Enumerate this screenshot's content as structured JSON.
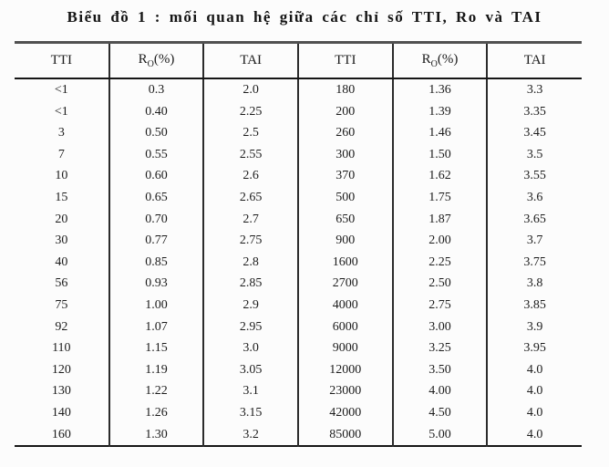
{
  "title": "Biểu đồ 1 : mối quan hệ giữa các chỉ số TTI, Ro và TAI",
  "table": {
    "header_cells": [
      {
        "text": "TTI"
      },
      {
        "pre": "R",
        "sub": "O",
        "post": "(%)"
      },
      {
        "text": "TAI"
      },
      {
        "text": "TTI"
      },
      {
        "pre": "R",
        "sub": "O",
        "post": "(%)"
      },
      {
        "text": "TAI"
      }
    ],
    "rows": [
      [
        "<1",
        "0.3",
        "2.0",
        "180",
        "1.36",
        "3.3"
      ],
      [
        "<1",
        "0.40",
        "2.25",
        "200",
        "1.39",
        "3.35"
      ],
      [
        "3",
        "0.50",
        "2.5",
        "260",
        "1.46",
        "3.45"
      ],
      [
        "7",
        "0.55",
        "2.55",
        "300",
        "1.50",
        "3.5"
      ],
      [
        "10",
        "0.60",
        "2.6",
        "370",
        "1.62",
        "3.55"
      ],
      [
        "15",
        "0.65",
        "2.65",
        "500",
        "1.75",
        "3.6"
      ],
      [
        "20",
        "0.70",
        "2.7",
        "650",
        "1.87",
        "3.65"
      ],
      [
        "30",
        "0.77",
        "2.75",
        "900",
        "2.00",
        "3.7"
      ],
      [
        "40",
        "0.85",
        "2.8",
        "1600",
        "2.25",
        "3.75"
      ],
      [
        "56",
        "0.93",
        "2.85",
        "2700",
        "2.50",
        "3.8"
      ],
      [
        "75",
        "1.00",
        "2.9",
        "4000",
        "2.75",
        "3.85"
      ],
      [
        "92",
        "1.07",
        "2.95",
        "6000",
        "3.00",
        "3.9"
      ],
      [
        "110",
        "1.15",
        "3.0",
        "9000",
        "3.25",
        "3.95"
      ],
      [
        "120",
        "1.19",
        "3.05",
        "12000",
        "3.50",
        "4.0"
      ],
      [
        "130",
        "1.22",
        "3.1",
        "23000",
        "4.00",
        "4.0"
      ],
      [
        "140",
        "1.26",
        "3.15",
        "42000",
        "4.50",
        "4.0"
      ],
      [
        "160",
        "1.30",
        "3.2",
        "85000",
        "5.00",
        "4.0"
      ]
    ],
    "colors": {
      "line_thick": "#515151",
      "line_thin": "#2b2b2b",
      "text": "#1c1c1c",
      "background": "#fcfcfc"
    }
  }
}
